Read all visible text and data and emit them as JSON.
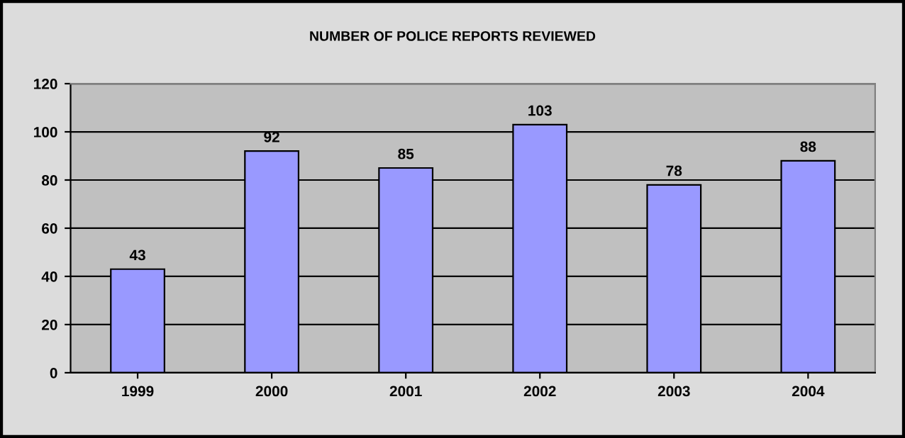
{
  "chart_data": {
    "type": "bar",
    "title": "NUMBER OF POLICE REPORTS REVIEWED",
    "categories": [
      "1999",
      "2000",
      "2001",
      "2002",
      "2003",
      "2004"
    ],
    "values": [
      43,
      92,
      85,
      103,
      78,
      88
    ],
    "color": "#9999ff",
    "ylim": [
      0,
      120
    ],
    "yticks": [
      0,
      20,
      40,
      60,
      80,
      100,
      120
    ],
    "grid": "y",
    "data_labels": true
  }
}
